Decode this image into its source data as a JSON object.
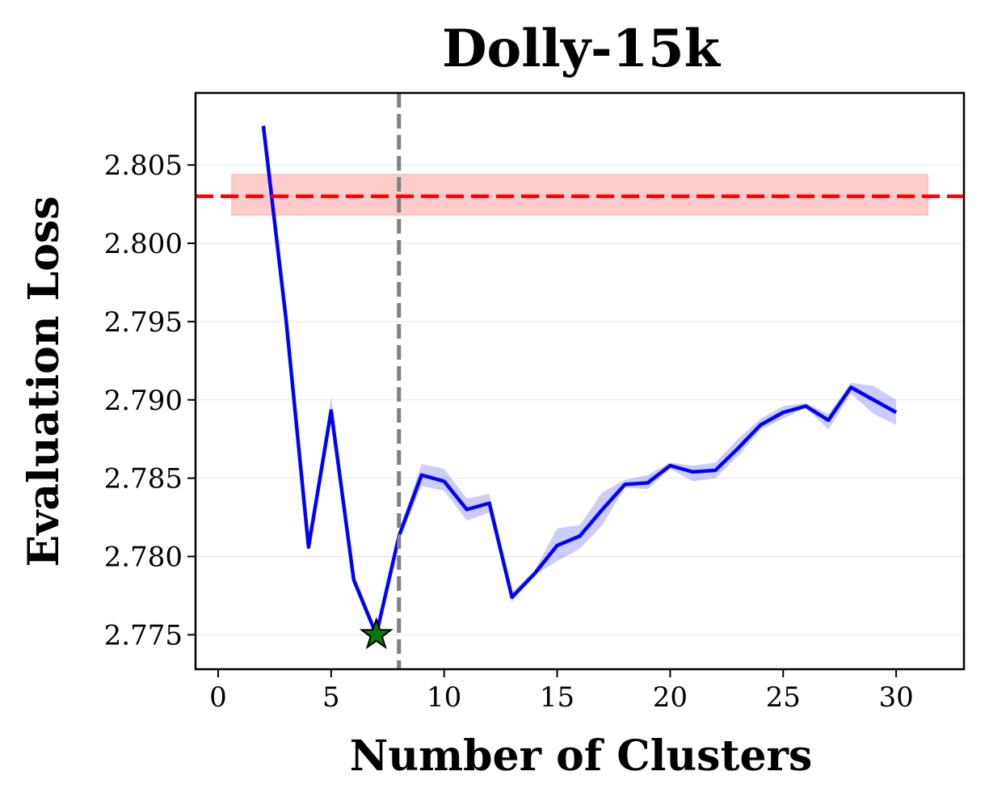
{
  "chart_data": {
    "type": "line",
    "title": "Dolly-15k",
    "xlabel": "Number of Clusters",
    "ylabel": "Evaluation Loss",
    "xlim": [
      -1,
      33
    ],
    "ylim": [
      2.7728,
      2.8096
    ],
    "xticks": [
      0,
      5,
      10,
      15,
      20,
      25,
      30
    ],
    "yticks": [
      2.775,
      2.78,
      2.785,
      2.79,
      2.795,
      2.8,
      2.805
    ],
    "ytick_labels": [
      "2.775",
      "2.780",
      "2.785",
      "2.790",
      "2.795",
      "2.800",
      "2.805"
    ],
    "grid": "horizontal",
    "series": [
      {
        "color": "#0000ff",
        "x": [
          2,
          3,
          4,
          5,
          6,
          7,
          8,
          9,
          10,
          11,
          12,
          13,
          14,
          15,
          16,
          17,
          18,
          19,
          20,
          21,
          22,
          23,
          24,
          25,
          26,
          27,
          28,
          29,
          30
        ],
        "y": [
          2.8075,
          2.7952,
          2.7806,
          2.7893,
          2.7785,
          2.775,
          2.7813,
          2.7852,
          2.7848,
          2.783,
          2.7834,
          2.7774,
          2.7789,
          2.7807,
          2.7813,
          2.783,
          2.7846,
          2.7847,
          2.7858,
          2.7854,
          2.7855,
          2.7869,
          2.7884,
          2.7892,
          2.7896,
          2.7887,
          2.7908,
          2.79,
          2.7892
        ],
        "band_low": [
          2.8072,
          2.7948,
          2.7804,
          2.7886,
          2.7782,
          2.7748,
          2.781,
          2.7845,
          2.7842,
          2.7823,
          2.7828,
          2.7771,
          2.7788,
          2.7797,
          2.7805,
          2.782,
          2.7844,
          2.7843,
          2.7856,
          2.7848,
          2.785,
          2.7864,
          2.7881,
          2.7888,
          2.7895,
          2.7881,
          2.7904,
          2.7891,
          2.7884
        ],
        "band_high": [
          2.8078,
          2.7956,
          2.7809,
          2.7902,
          2.7789,
          2.7753,
          2.7816,
          2.7859,
          2.7856,
          2.7837,
          2.784,
          2.7777,
          2.7791,
          2.7818,
          2.782,
          2.7841,
          2.7849,
          2.7852,
          2.786,
          2.7858,
          2.786,
          2.7875,
          2.7888,
          2.7896,
          2.7898,
          2.7891,
          2.7911,
          2.7909,
          2.79
        ]
      }
    ],
    "best_point": {
      "x": 7,
      "y": 2.775,
      "marker": "star",
      "color": "#0b7a0b"
    },
    "reference_line": {
      "y": 2.803,
      "band_low": 2.8018,
      "band_high": 2.8044,
      "band_x": [
        0.6,
        31.4
      ],
      "color": "#ff0000",
      "style": "dashed"
    },
    "vertical_line": {
      "x": 8,
      "color": "#808080",
      "style": "dashed"
    }
  }
}
